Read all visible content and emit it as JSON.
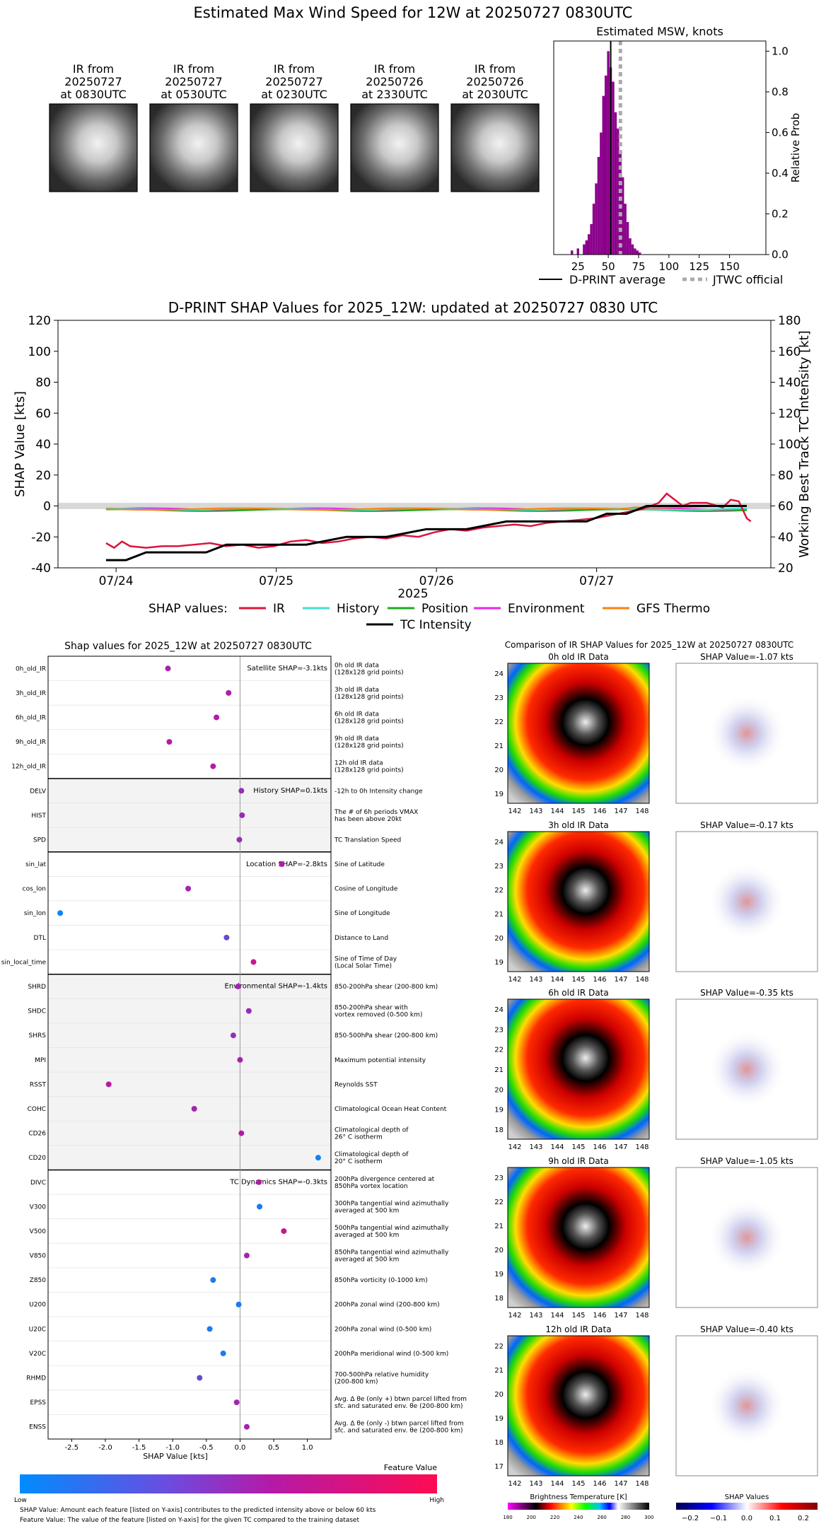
{
  "header": {
    "title": "Estimated Max Wind Speed for 12W at 20250727 0830UTC"
  },
  "ir_panels": [
    {
      "label": "IR from\n20250727\nat 0830UTC"
    },
    {
      "label": "IR from\n20250727\nat 0530UTC"
    },
    {
      "label": "IR from\n20250727\nat 0230UTC"
    },
    {
      "label": "IR from\n20250726\nat 2330UTC"
    },
    {
      "label": "IR from\n20250726\nat 2030UTC"
    }
  ],
  "chart_data": [
    {
      "type": "bar",
      "title": "Estimated MSW, knots",
      "xlabel": "",
      "ylabel": "Relative Prob",
      "xlim": [
        5,
        180
      ],
      "ylim": [
        0,
        1.05
      ],
      "xticks": [
        25,
        50,
        75,
        100,
        125,
        150
      ],
      "yticks": [
        0.0,
        0.2,
        0.4,
        0.6,
        0.8,
        1.0
      ],
      "bins": [
        [
          20,
          0.02
        ],
        [
          25,
          0.03
        ],
        [
          30,
          0.05
        ],
        [
          32,
          0.07
        ],
        [
          34,
          0.1
        ],
        [
          36,
          0.15
        ],
        [
          38,
          0.25
        ],
        [
          40,
          0.35
        ],
        [
          42,
          0.48
        ],
        [
          44,
          0.6
        ],
        [
          46,
          0.78
        ],
        [
          48,
          0.88
        ],
        [
          50,
          1.0
        ],
        [
          52,
          0.92
        ],
        [
          54,
          0.85
        ],
        [
          56,
          0.7
        ],
        [
          58,
          0.62
        ],
        [
          60,
          0.5
        ],
        [
          62,
          0.38
        ],
        [
          64,
          0.25
        ],
        [
          66,
          0.16
        ],
        [
          68,
          0.08
        ],
        [
          70,
          0.05
        ],
        [
          72,
          0.03
        ],
        [
          74,
          0.02
        ],
        [
          76,
          0.01
        ]
      ],
      "bar_color": "#8b008b",
      "dprint_average": 52,
      "jtwc_official": 60,
      "legend": [
        "D-PRINT average",
        "JTWC official"
      ]
    },
    {
      "type": "line",
      "title": "D-PRINT SHAP Values for 2025_12W: updated at 20250727 0830 UTC",
      "xlabel": "2025",
      "ylabel": "SHAP Value [kts]",
      "y2label": "Working Best Track TC Intensity [kt]",
      "xticks": [
        "07/24",
        "07/25",
        "07/26",
        "07/27"
      ],
      "ylim": [
        -40,
        120
      ],
      "y2lim": [
        20,
        180
      ],
      "yticks": [
        -40,
        -20,
        0,
        20,
        40,
        60,
        80,
        100,
        120
      ],
      "y2ticks": [
        20,
        40,
        60,
        80,
        100,
        120,
        140,
        160,
        180
      ],
      "legend_title": "SHAP values:",
      "legend": [
        {
          "name": "IR",
          "color": "#dc143c"
        },
        {
          "name": "History",
          "color": "#40e0d0"
        },
        {
          "name": "Position",
          "color": "#22aa22"
        },
        {
          "name": "Environment",
          "color": "#ee22ee"
        },
        {
          "name": "GFS Thermo",
          "color": "#ff7f0e"
        },
        {
          "name": "TC Intensity",
          "color": "#000000"
        }
      ],
      "tc_intensity": [
        [
          0,
          25
        ],
        [
          0.25,
          25
        ],
        [
          0.5,
          30
        ],
        [
          1.0,
          30
        ],
        [
          1.25,
          30
        ],
        [
          1.5,
          35
        ],
        [
          2.0,
          35
        ],
        [
          2.5,
          35
        ],
        [
          3.0,
          40
        ],
        [
          3.5,
          40
        ],
        [
          4.0,
          45
        ],
        [
          4.5,
          45
        ],
        [
          5.0,
          50
        ],
        [
          5.5,
          50
        ],
        [
          6.0,
          50
        ],
        [
          6.25,
          55
        ],
        [
          6.5,
          55
        ],
        [
          6.75,
          60
        ],
        [
          7.0,
          60
        ],
        [
          7.5,
          60
        ],
        [
          8.0,
          60
        ]
      ],
      "ir_series": [
        [
          0.0,
          -24
        ],
        [
          0.1,
          -27
        ],
        [
          0.2,
          -23
        ],
        [
          0.3,
          -26
        ],
        [
          0.5,
          -27
        ],
        [
          0.7,
          -26
        ],
        [
          0.9,
          -26
        ],
        [
          1.1,
          -25
        ],
        [
          1.3,
          -24
        ],
        [
          1.5,
          -26
        ],
        [
          1.7,
          -25
        ],
        [
          1.9,
          -27
        ],
        [
          2.1,
          -26
        ],
        [
          2.3,
          -23
        ],
        [
          2.5,
          -22
        ],
        [
          2.7,
          -24
        ],
        [
          2.9,
          -23
        ],
        [
          3.1,
          -21
        ],
        [
          3.3,
          -20
        ],
        [
          3.5,
          -21
        ],
        [
          3.7,
          -19
        ],
        [
          3.9,
          -20
        ],
        [
          4.1,
          -17
        ],
        [
          4.3,
          -15
        ],
        [
          4.5,
          -16
        ],
        [
          4.7,
          -14
        ],
        [
          4.9,
          -13
        ],
        [
          5.1,
          -12
        ],
        [
          5.3,
          -13
        ],
        [
          5.5,
          -11
        ],
        [
          5.7,
          -10
        ],
        [
          5.9,
          -9
        ],
        [
          6.1,
          -8
        ],
        [
          6.3,
          -6
        ],
        [
          6.5,
          -4
        ],
        [
          6.7,
          -2
        ],
        [
          6.9,
          2
        ],
        [
          7.0,
          8
        ],
        [
          7.1,
          4
        ],
        [
          7.2,
          0
        ],
        [
          7.3,
          2
        ],
        [
          7.5,
          2
        ],
        [
          7.7,
          -1
        ],
        [
          7.8,
          4
        ],
        [
          7.9,
          3
        ],
        [
          8.0,
          -8
        ],
        [
          8.05,
          -10
        ]
      ],
      "small_series_level": -2
    },
    {
      "type": "scatter",
      "title": "Shap values for 2025_12W at 20250727 0830UTC",
      "xlabel": "SHAP Value [kts]",
      "xlim": [
        -2.85,
        1.35
      ],
      "xticks": [
        -2.5,
        -2.0,
        -1.5,
        -1.0,
        -0.5,
        0.0,
        0.5,
        1.0
      ],
      "groups": [
        {
          "label": "Satellite SHAP=-3.1kts",
          "shaded": false,
          "features": [
            {
              "name": "0h_old_IR",
              "desc": "0h old IR data\n(128x128 grid points)",
              "value": -1.07,
              "fv": 0.55
            },
            {
              "name": "3h_old_IR",
              "desc": "3h old IR data\n(128x128 grid points)",
              "value": -0.17,
              "fv": 0.6
            },
            {
              "name": "6h_old_IR",
              "desc": "6h old IR data\n(128x128 grid points)",
              "value": -0.35,
              "fv": 0.6
            },
            {
              "name": "9h_old_IR",
              "desc": "9h old IR data\n(128x128 grid points)",
              "value": -1.05,
              "fv": 0.6
            },
            {
              "name": "12h_old_IR",
              "desc": "12h old IR data\n(128x128 grid points)",
              "value": -0.4,
              "fv": 0.6
            }
          ]
        },
        {
          "label": "History SHAP=0.1kts",
          "shaded": true,
          "features": [
            {
              "name": "DELV",
              "desc": "-12h to 0h Intensity change",
              "value": 0.02,
              "fv": 0.5
            },
            {
              "name": "HIST",
              "desc": "The # of 6h periods VMAX\nhas been above 20kt",
              "value": 0.03,
              "fv": 0.5
            },
            {
              "name": "SPD",
              "desc": "TC Translation Speed",
              "value": -0.01,
              "fv": 0.5
            }
          ]
        },
        {
          "label": "Location SHAP=-2.8kts",
          "shaded": false,
          "features": [
            {
              "name": "sin_lat",
              "desc": "Sine of Latitude",
              "value": 0.62,
              "fv": 0.6
            },
            {
              "name": "cos_lon",
              "desc": "Cosine of Longitude",
              "value": -0.77,
              "fv": 0.55
            },
            {
              "name": "sin_lon",
              "desc": "Sine of Longitude",
              "value": -2.67,
              "fv": 0.05
            },
            {
              "name": "DTL",
              "desc": "Distance to Land",
              "value": -0.2,
              "fv": 0.35
            },
            {
              "name": "sin_local_time",
              "desc": "Sine of Time of Day\n(Local Solar Time)",
              "value": 0.2,
              "fv": 0.7
            }
          ]
        },
        {
          "label": "Environmental SHAP=-1.4kts",
          "shaded": true,
          "features": [
            {
              "name": "SHRD",
              "desc": "850-200hPa shear (200-800 km)",
              "value": -0.03,
              "fv": 0.55
            },
            {
              "name": "SHDC",
              "desc": "850-200hPa shear with\nvortex removed (0-500 km)",
              "value": 0.13,
              "fv": 0.5
            },
            {
              "name": "SHRS",
              "desc": "850-500hPa shear (200-800 km)",
              "value": -0.1,
              "fv": 0.5
            },
            {
              "name": "MPI",
              "desc": "Maximum potential intensity",
              "value": 0.0,
              "fv": 0.55
            },
            {
              "name": "RSST",
              "desc": "Reynolds SST",
              "value": -1.95,
              "fv": 0.6
            },
            {
              "name": "COHC",
              "desc": "Climatological Ocean Heat Content",
              "value": -0.68,
              "fv": 0.55
            },
            {
              "name": "CD26",
              "desc": "Climatological depth of\n26° C isotherm",
              "value": 0.02,
              "fv": 0.6
            },
            {
              "name": "CD20",
              "desc": "Climatological depth of\n20° C isotherm",
              "value": 1.16,
              "fv": 0.05
            }
          ]
        },
        {
          "label": "TC Dynamics SHAP=-0.3kts",
          "shaded": false,
          "features": [
            {
              "name": "DIVC",
              "desc": "200hPa divergence centered at\n850hPa vortex location",
              "value": 0.28,
              "fv": 0.6
            },
            {
              "name": "V300",
              "desc": "300hPa tangential wind azimuthally\naveraged at 500 km",
              "value": 0.29,
              "fv": 0.1
            },
            {
              "name": "V500",
              "desc": "500hPa tangential wind azimuthally\naveraged at 500 km",
              "value": 0.65,
              "fv": 0.7
            },
            {
              "name": "V850",
              "desc": "850hPa tangential wind azimuthally\naveraged at 500 km",
              "value": 0.1,
              "fv": 0.55
            },
            {
              "name": "Z850",
              "desc": "850hPa vorticity (0-1000 km)",
              "value": -0.4,
              "fv": 0.1
            },
            {
              "name": "U200",
              "desc": "200hPa zonal wind (200-800 km)",
              "value": -0.02,
              "fv": 0.1
            },
            {
              "name": "U20C",
              "desc": "200hPa zonal wind (0-500 km)",
              "value": -0.45,
              "fv": 0.1
            },
            {
              "name": "V20C",
              "desc": "200hPa meridional wind (0-500 km)",
              "value": -0.25,
              "fv": 0.1
            },
            {
              "name": "RHMD",
              "desc": "700-500hPa relative humidity\n(200-800 km)",
              "value": -0.6,
              "fv": 0.35
            },
            {
              "name": "EPSS",
              "desc": "Avg. Δ θe (only +) btwn parcel lifted from\nsfc. and saturated env. θe (200-800 km)",
              "value": -0.05,
              "fv": 0.55
            },
            {
              "name": "ENSS",
              "desc": "Avg. Δ θe (only -) btwn parcel lifted from\nsfc. and saturated env. θe (200-800 km)",
              "value": 0.1,
              "fv": 0.55
            }
          ]
        }
      ]
    }
  ],
  "colorbar": {
    "title": "Feature Value",
    "low": "Low",
    "high": "High",
    "note1": "SHAP Value: Amount each feature [listed on Y-axis] contributes to the predicted intensity above or below 60 kts",
    "note2": "Feature Value: The value of the feature [listed on Y-axis] for the given TC compared to the training dataset"
  },
  "comparison": {
    "title": "Comparison of IR SHAP Values for 2025_12W at 20250727 0830UTC",
    "rows": [
      {
        "ir_title": "0h old IR Data",
        "shap_title": "SHAP Value=-1.07 kts",
        "yticks": [
          "24",
          "23",
          "22",
          "21",
          "20",
          "19"
        ]
      },
      {
        "ir_title": "3h old IR Data",
        "shap_title": "SHAP Value=-0.17 kts",
        "yticks": [
          "24",
          "23",
          "22",
          "21",
          "20",
          "19"
        ]
      },
      {
        "ir_title": "6h old IR Data",
        "shap_title": "SHAP Value=-0.35 kts",
        "yticks": [
          "24",
          "23",
          "22",
          "21",
          "20",
          "19",
          "18"
        ]
      },
      {
        "ir_title": "9h old IR Data",
        "shap_title": "SHAP Value=-1.05 kts",
        "yticks": [
          "23",
          "22",
          "21",
          "20",
          "19",
          "18"
        ]
      },
      {
        "ir_title": "12h old IR Data",
        "shap_title": "SHAP Value=-0.40 kts",
        "yticks": [
          "22",
          "21",
          "20",
          "19",
          "18",
          "17"
        ]
      }
    ],
    "xticks": [
      "142",
      "143",
      "144",
      "145",
      "146",
      "147",
      "148"
    ],
    "bt_label": "Brightness Temperature [K]",
    "bt_ticks": [
      "180",
      "200",
      "220",
      "240",
      "260",
      "280",
      "300"
    ],
    "shap_cb_label": "SHAP Values",
    "shap_cb_ticks": [
      "−0.2",
      "−0.1",
      "0.0",
      "0.1",
      "0.2"
    ]
  }
}
